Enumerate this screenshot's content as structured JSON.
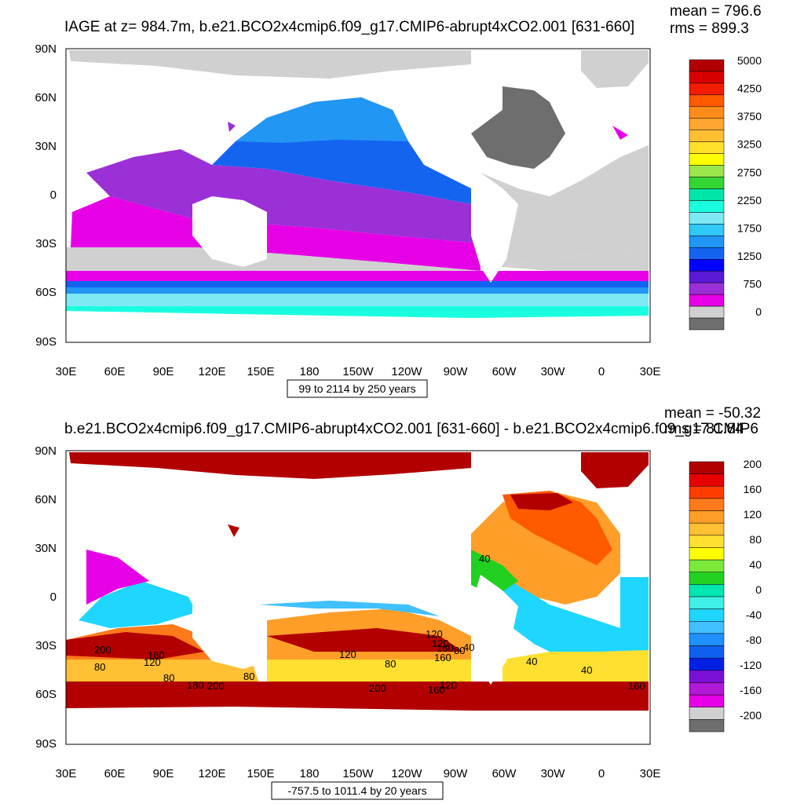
{
  "top": {
    "title": "IAGE at z= 984.7m, b.e21.BCO2x4cmip6.f09_g17.CMIP6-abrupt4xCO2.001 [631-660]",
    "mean_label": "mean = 796.6",
    "rms_label": "rms = 899.3",
    "info_box": "99 to 2114 by 250 years",
    "colorbar": {
      "colors": [
        "#b20000",
        "#d90000",
        "#f21c00",
        "#ff5a00",
        "#ff8c1a",
        "#ffa531",
        "#ffbf33",
        "#ffe02a",
        "#ffff00",
        "#99e64d",
        "#33d633",
        "#00e6a8",
        "#1affe0",
        "#7fe8f5",
        "#30c8f5",
        "#2196f3",
        "#1464f0",
        "#0000ff",
        "#5a1ad6",
        "#9b30d6",
        "#e600e6",
        "#d0d0d0",
        "#6e6e6e"
      ],
      "labels": [
        "5000",
        "4250",
        "3750",
        "3250",
        "2750",
        "2250",
        "1750",
        "1250",
        "750",
        "0"
      ]
    }
  },
  "bottom": {
    "title": "b.e21.BCO2x4cmip6.f09_g17.CMIP6-abrupt4xCO2.001 [631-660] - b.e21.BCO2x4cmip6.f09_g17.CMIP6",
    "mean_label": "mean = -50.32",
    "rms_label": "rms = 81.84",
    "info_box": "-757.5 to 1011.4 by 20 years",
    "colorbar": {
      "colors": [
        "#b20000",
        "#e60000",
        "#ff3c00",
        "#ff7a1a",
        "#ff9e29",
        "#ffc034",
        "#ffe030",
        "#ffff00",
        "#7ce83a",
        "#22d022",
        "#00e6b0",
        "#40f0e6",
        "#1ed6ff",
        "#40c0ff",
        "#2090ff",
        "#1060f0",
        "#0020e6",
        "#7a10d6",
        "#b01ad6",
        "#e600e6",
        "#d0d0d0",
        "#6e6e6e"
      ],
      "labels": [
        "200",
        "160",
        "120",
        "80",
        "40",
        "0",
        "-40",
        "-80",
        "-120",
        "-160",
        "-200"
      ]
    },
    "contour_labels": [
      "200",
      "160",
      "120",
      "80",
      "80",
      "180",
      "200",
      "120",
      "80",
      "80",
      "200",
      "160",
      "120",
      "120",
      "40",
      "40",
      "160",
      "120",
      "160",
      "80",
      "40",
      "40",
      "160"
    ]
  },
  "axes": {
    "y_ticks": [
      "90N",
      "60N",
      "30N",
      "0",
      "30S",
      "60S",
      "90S"
    ],
    "x_ticks": [
      "30E",
      "60E",
      "90E",
      "120E",
      "150E",
      "180",
      "150W",
      "120W",
      "90W",
      "60W",
      "30W",
      "0",
      "30E"
    ]
  }
}
